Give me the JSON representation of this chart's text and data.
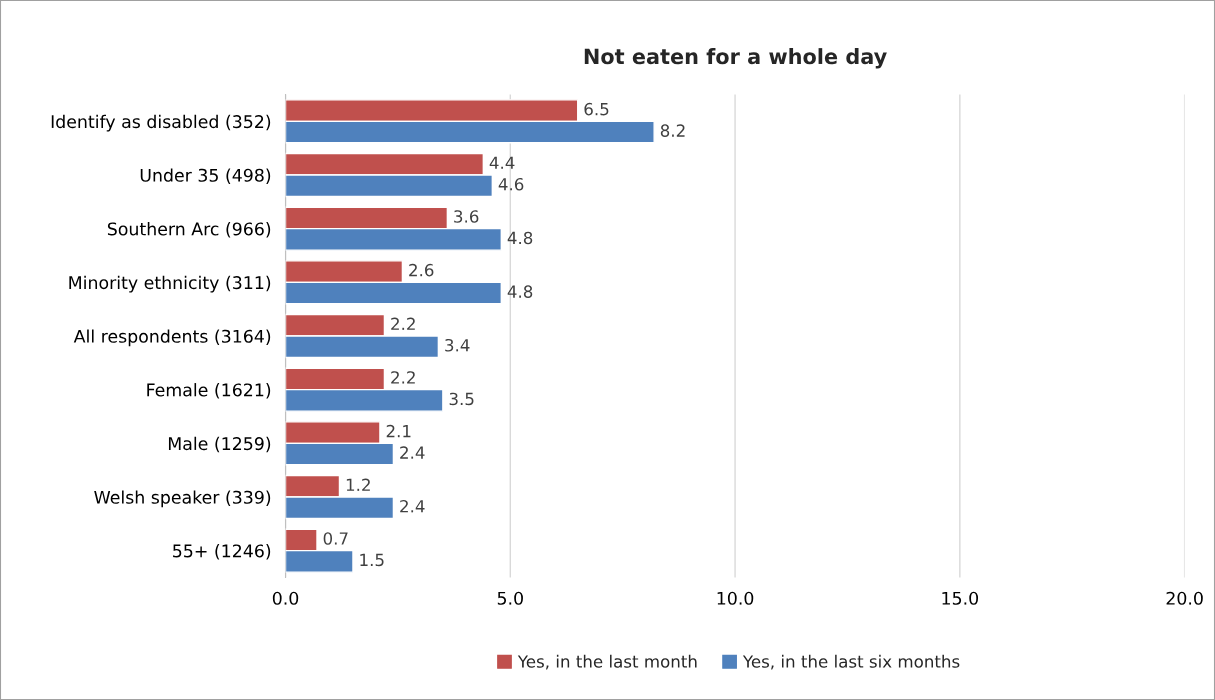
{
  "chart_data": {
    "type": "bar",
    "orientation": "horizontal",
    "title": "Not eaten for a whole day",
    "categories": [
      "Identify as disabled (352)",
      "Under 35 (498)",
      "Southern Arc (966)",
      "Minority ethnicity (311)",
      "All respondents (3164)",
      "Female (1621)",
      "Male (1259)",
      "Welsh speaker (339)",
      "55+ (1246)"
    ],
    "series": [
      {
        "name": "Yes, in the last month",
        "color": "#c0504d",
        "values": [
          6.5,
          4.4,
          3.6,
          2.6,
          2.2,
          2.2,
          2.1,
          1.2,
          0.7
        ]
      },
      {
        "name": "Yes, in the last six months",
        "color": "#4f81bd",
        "values": [
          8.2,
          4.6,
          4.8,
          4.8,
          3.4,
          3.5,
          2.4,
          2.4,
          1.5
        ]
      }
    ],
    "xlim": [
      0,
      20
    ],
    "xticks": [
      {
        "value": 0,
        "label": "0.0"
      },
      {
        "value": 5,
        "label": "5.0"
      },
      {
        "value": 10,
        "label": "10.0"
      },
      {
        "value": 15,
        "label": "15.0"
      },
      {
        "value": 20,
        "label": "20.0"
      }
    ],
    "grid": "x",
    "legend": "bottom",
    "data_labels": true
  }
}
